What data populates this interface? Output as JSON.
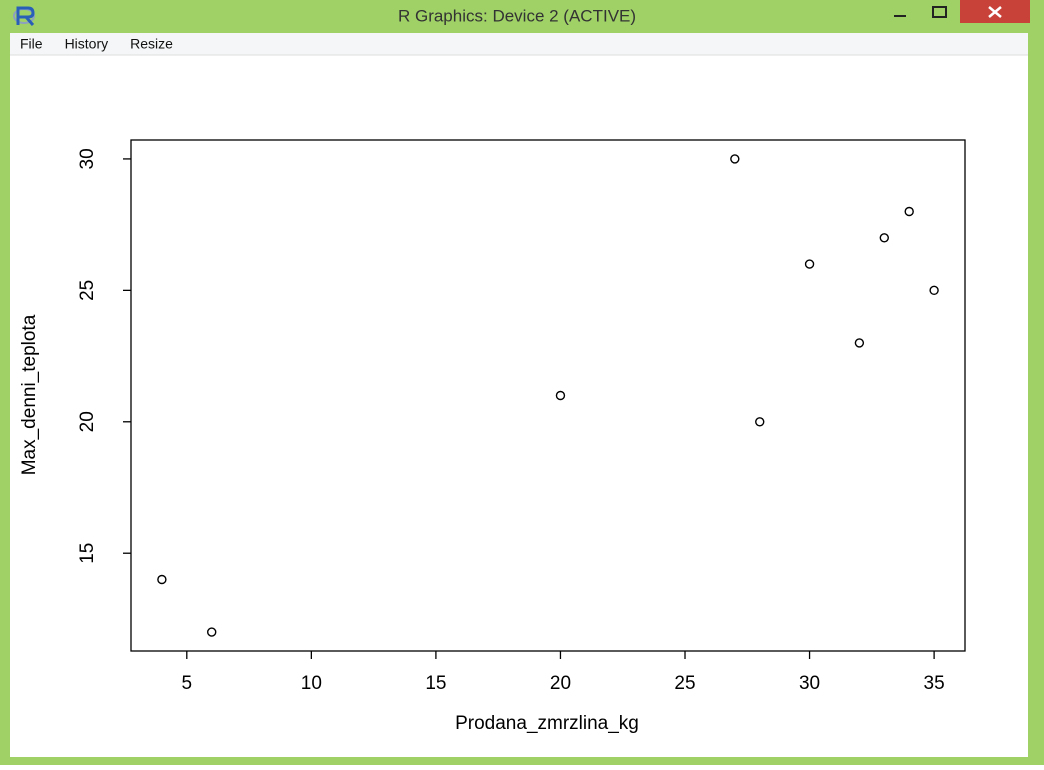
{
  "window": {
    "title": "R Graphics: Device 2 (ACTIVE)",
    "menu": [
      "File",
      "History",
      "Resize"
    ]
  },
  "chart_data": {
    "type": "scatter",
    "x_label": "Prodana_zmrzlina_kg",
    "y_label": "Max_denni_teplota",
    "x": [
      4,
      6,
      20,
      27,
      28,
      30,
      32,
      33,
      34,
      35
    ],
    "values": [
      14,
      12,
      21,
      30,
      20,
      26,
      23,
      27,
      28,
      25
    ],
    "color": "#000000",
    "xlim": [
      2.76,
      36.24
    ],
    "ylim": [
      11.28,
      30.72
    ],
    "xticks": [
      5,
      10,
      15,
      20,
      25,
      30,
      35
    ],
    "yticks": [
      15,
      20,
      25,
      30
    ]
  }
}
